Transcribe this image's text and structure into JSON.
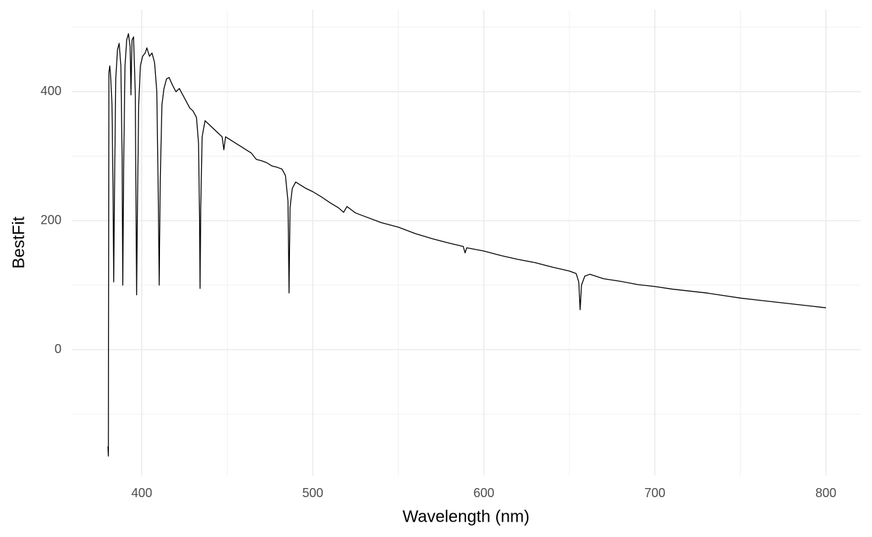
{
  "chart_data": {
    "type": "line",
    "x_label": "Wavelength (nm)",
    "y_label": "BestFit",
    "x": [
      380.2,
      380.5,
      380.8,
      381.3,
      381.8,
      382.6,
      383.2,
      383.6,
      384.0,
      384.8,
      385.8,
      386.8,
      387.8,
      388.5,
      388.9,
      389.4,
      390.2,
      391.2,
      392.2,
      393.2,
      393.7,
      394.3,
      395.2,
      396.2,
      396.7,
      397.0,
      397.4,
      398.2,
      399.2,
      400.5,
      402,
      403,
      404.5,
      406,
      407.5,
      408.8,
      409.6,
      410.2,
      410.8,
      411.8,
      413,
      414.5,
      416,
      418,
      420,
      422,
      424,
      426,
      428,
      430,
      432,
      433.2,
      433.8,
      434.1,
      434.5,
      435.3,
      437,
      439,
      441,
      443,
      445,
      447,
      448,
      449,
      452,
      455,
      458,
      461,
      464,
      467,
      470,
      473,
      476,
      479,
      482,
      484,
      485.5,
      486.1,
      486.7,
      488,
      490,
      493,
      496,
      500,
      505,
      510,
      515,
      518,
      520,
      525,
      530,
      540,
      550,
      560,
      570,
      580,
      588,
      589,
      590,
      600,
      610,
      620,
      630,
      640,
      650,
      654,
      655.5,
      656.3,
      657.1,
      659,
      662,
      670,
      680,
      690,
      700,
      710,
      720,
      730,
      740,
      750,
      760,
      770,
      780,
      790,
      800
    ],
    "values": [
      -150,
      -165,
      430,
      440,
      425,
      380,
      250,
      105,
      230,
      420,
      465,
      475,
      440,
      300,
      100,
      280,
      440,
      480,
      490,
      470,
      395,
      480,
      485,
      400,
      200,
      85,
      200,
      380,
      440,
      455,
      460,
      468,
      455,
      460,
      445,
      400,
      250,
      100,
      260,
      380,
      405,
      420,
      422,
      410,
      400,
      405,
      395,
      385,
      375,
      370,
      360,
      320,
      200,
      95,
      220,
      330,
      355,
      350,
      345,
      340,
      335,
      330,
      310,
      330,
      325,
      320,
      315,
      310,
      305,
      295,
      293,
      290,
      285,
      283,
      280,
      270,
      230,
      88,
      220,
      250,
      260,
      255,
      250,
      245,
      237,
      228,
      220,
      213,
      222,
      212,
      207,
      197,
      190,
      180,
      172,
      165,
      160,
      150,
      158,
      153,
      146,
      140,
      135,
      128,
      122,
      118,
      105,
      62,
      100,
      114,
      117,
      110,
      106,
      101,
      98,
      94,
      91,
      88,
      84,
      80,
      77,
      74,
      71,
      68,
      65
    ],
    "color": "#000000",
    "xlim": [
      359.2,
      820.4
    ],
    "ylim": [
      -195,
      527
    ],
    "xticks": [
      400,
      500,
      600,
      700,
      800
    ],
    "yticks": [
      0,
      200,
      400
    ],
    "minor_xticks": [
      450,
      550,
      650,
      750
    ],
    "minor_yticks": [
      -100,
      100,
      300,
      500
    ],
    "grid": true
  }
}
